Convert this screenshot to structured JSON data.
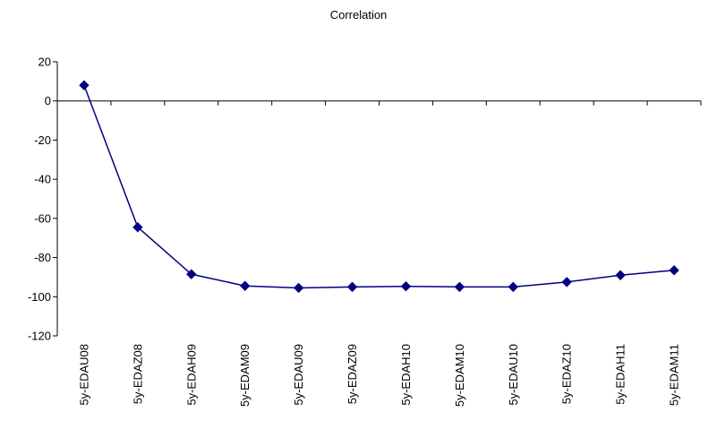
{
  "chart_data": {
    "type": "line",
    "title": "Correlation",
    "xlabel": "",
    "ylabel": "",
    "categories": [
      "5y-EDAU08",
      "5y-EDAZ08",
      "5y-EDAH09",
      "5y-EDAM09",
      "5y-EDAU09",
      "5y-EDAZ09",
      "5y-EDAH10",
      "5y-EDAM10",
      "5y-EDAU10",
      "5y-EDAZ10",
      "5y-EDAH11",
      "5y-EDAM11"
    ],
    "series": [
      {
        "values": [
          8,
          -64.5,
          -88.5,
          -94.5,
          -95.5,
          -95,
          -94.7,
          -95,
          -95,
          -92.5,
          -89,
          -86.5
        ]
      }
    ],
    "ylim": [
      -120,
      20
    ],
    "yticks": [
      20,
      0,
      -20,
      -40,
      -60,
      -80,
      -100,
      -120
    ],
    "grid": false,
    "legend": "none",
    "line_color": "#000080",
    "marker": "diamond"
  }
}
